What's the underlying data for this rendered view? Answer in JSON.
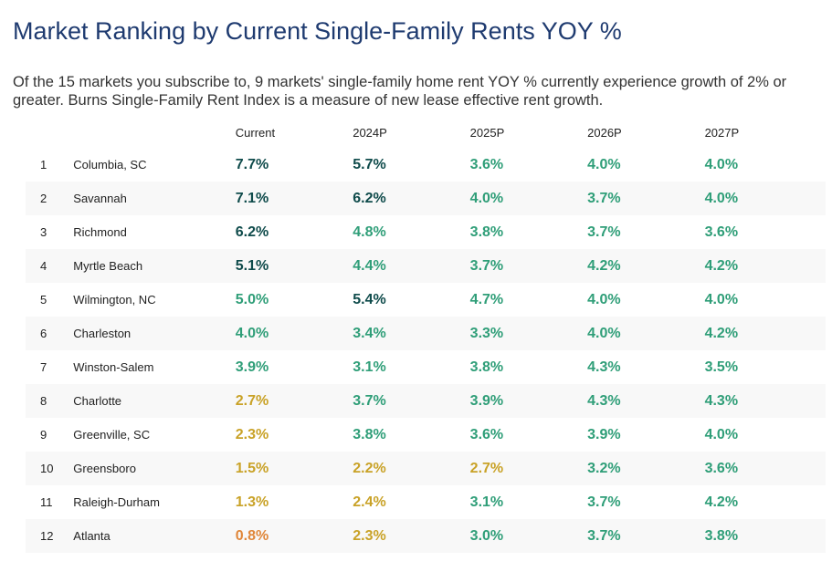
{
  "title": "Market Ranking by Current Single-Family Rents YOY %",
  "subtitle": "Of the 15 markets you subscribe to, 9 markets' single-family home rent YOY % currently experience growth of 2% or greater. Burns Single-Family Rent Index is a measure of new lease effective rent growth.",
  "colors": {
    "dark": "#0f4b4b",
    "green": "#2f9e78",
    "gold": "#c9a227",
    "orange": "#e0873a",
    "title": "#1f3b70"
  },
  "table": {
    "headers": [
      "Current",
      "2024P",
      "2025P",
      "2026P",
      "2027P"
    ],
    "rows": [
      {
        "rank": "1",
        "market": "Columbia, SC",
        "values": [
          "7.7%",
          "5.7%",
          "3.6%",
          "4.0%",
          "4.0%"
        ],
        "tones": [
          "dark",
          "dark",
          "green",
          "green",
          "green"
        ]
      },
      {
        "rank": "2",
        "market": "Savannah",
        "values": [
          "7.1%",
          "6.2%",
          "4.0%",
          "3.7%",
          "4.0%"
        ],
        "tones": [
          "dark",
          "dark",
          "green",
          "green",
          "green"
        ]
      },
      {
        "rank": "3",
        "market": "Richmond",
        "values": [
          "6.2%",
          "4.8%",
          "3.8%",
          "3.7%",
          "3.6%"
        ],
        "tones": [
          "dark",
          "green",
          "green",
          "green",
          "green"
        ]
      },
      {
        "rank": "4",
        "market": "Myrtle Beach",
        "values": [
          "5.1%",
          "4.4%",
          "3.7%",
          "4.2%",
          "4.2%"
        ],
        "tones": [
          "dark",
          "green",
          "green",
          "green",
          "green"
        ]
      },
      {
        "rank": "5",
        "market": "Wilmington, NC",
        "values": [
          "5.0%",
          "5.4%",
          "4.7%",
          "4.0%",
          "4.0%"
        ],
        "tones": [
          "green",
          "dark",
          "green",
          "green",
          "green"
        ]
      },
      {
        "rank": "6",
        "market": "Charleston",
        "values": [
          "4.0%",
          "3.4%",
          "3.3%",
          "4.0%",
          "4.2%"
        ],
        "tones": [
          "green",
          "green",
          "green",
          "green",
          "green"
        ]
      },
      {
        "rank": "7",
        "market": "Winston-Salem",
        "values": [
          "3.9%",
          "3.1%",
          "3.8%",
          "4.3%",
          "3.5%"
        ],
        "tones": [
          "green",
          "green",
          "green",
          "green",
          "green"
        ]
      },
      {
        "rank": "8",
        "market": "Charlotte",
        "values": [
          "2.7%",
          "3.7%",
          "3.9%",
          "4.3%",
          "4.3%"
        ],
        "tones": [
          "gold",
          "green",
          "green",
          "green",
          "green"
        ]
      },
      {
        "rank": "9",
        "market": "Greenville, SC",
        "values": [
          "2.3%",
          "3.8%",
          "3.6%",
          "3.9%",
          "4.0%"
        ],
        "tones": [
          "gold",
          "green",
          "green",
          "green",
          "green"
        ]
      },
      {
        "rank": "10",
        "market": "Greensboro",
        "values": [
          "1.5%",
          "2.2%",
          "2.7%",
          "3.2%",
          "3.6%"
        ],
        "tones": [
          "gold",
          "gold",
          "gold",
          "green",
          "green"
        ]
      },
      {
        "rank": "11",
        "market": "Raleigh-Durham",
        "values": [
          "1.3%",
          "2.4%",
          "3.1%",
          "3.7%",
          "4.2%"
        ],
        "tones": [
          "gold",
          "gold",
          "green",
          "green",
          "green"
        ]
      },
      {
        "rank": "12",
        "market": "Atlanta",
        "values": [
          "0.8%",
          "2.3%",
          "3.0%",
          "3.7%",
          "3.8%"
        ],
        "tones": [
          "orange",
          "gold",
          "green",
          "green",
          "green"
        ]
      }
    ]
  }
}
